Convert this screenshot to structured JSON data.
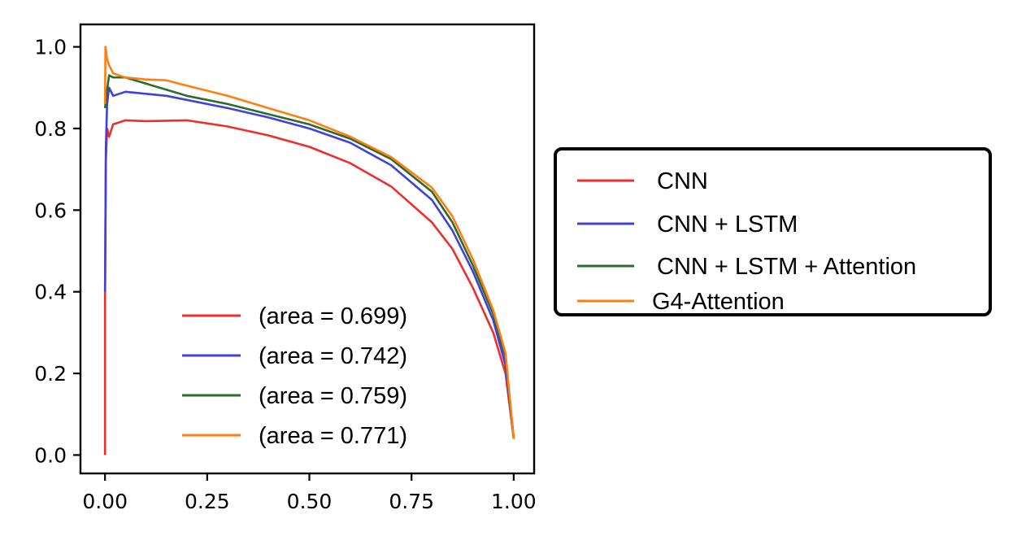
{
  "chart_data": {
    "type": "line",
    "title": "",
    "xlabel": "",
    "ylabel": "",
    "xlim": [
      -0.06,
      1.05
    ],
    "ylim": [
      -0.045,
      1.055
    ],
    "x_ticks": [
      "0.00",
      "0.25",
      "0.50",
      "0.75",
      "1.00"
    ],
    "y_ticks": [
      "0.0",
      "0.2",
      "0.4",
      "0.6",
      "0.8",
      "1.0"
    ],
    "grid": false,
    "legends": [
      {
        "placement": "inside-lower-center",
        "entries": [
          "(area = 0.699)",
          "(area = 0.742)",
          "(area = 0.759)",
          "(area = 0.771)"
        ]
      },
      {
        "placement": "outside-right",
        "entries": [
          "CNN",
          "CNN + LSTM",
          "CNN + LSTM + Attention",
          "G4-Attention"
        ]
      }
    ],
    "series": [
      {
        "name": "CNN",
        "color": "#ee2d2d",
        "area": "0.699",
        "points": [
          [
            0.0,
            0.0
          ],
          [
            0.0,
            0.39
          ],
          [
            0.002,
            0.72
          ],
          [
            0.005,
            0.8
          ],
          [
            0.01,
            0.78
          ],
          [
            0.02,
            0.81
          ],
          [
            0.05,
            0.82
          ],
          [
            0.1,
            0.818
          ],
          [
            0.2,
            0.82
          ],
          [
            0.3,
            0.805
          ],
          [
            0.4,
            0.783
          ],
          [
            0.5,
            0.755
          ],
          [
            0.6,
            0.715
          ],
          [
            0.7,
            0.658
          ],
          [
            0.8,
            0.57
          ],
          [
            0.85,
            0.505
          ],
          [
            0.9,
            0.41
          ],
          [
            0.95,
            0.3
          ],
          [
            0.98,
            0.2
          ],
          [
            1.0,
            0.04
          ]
        ]
      },
      {
        "name": "CNN + LSTM",
        "color": "#4040dd",
        "area": "0.742",
        "points": [
          [
            0.0,
            0.4
          ],
          [
            0.002,
            0.75
          ],
          [
            0.005,
            0.86
          ],
          [
            0.01,
            0.9
          ],
          [
            0.02,
            0.88
          ],
          [
            0.05,
            0.89
          ],
          [
            0.1,
            0.885
          ],
          [
            0.15,
            0.88
          ],
          [
            0.2,
            0.87
          ],
          [
            0.3,
            0.85
          ],
          [
            0.4,
            0.827
          ],
          [
            0.5,
            0.8
          ],
          [
            0.6,
            0.765
          ],
          [
            0.7,
            0.71
          ],
          [
            0.8,
            0.625
          ],
          [
            0.85,
            0.55
          ],
          [
            0.9,
            0.45
          ],
          [
            0.95,
            0.33
          ],
          [
            0.98,
            0.22
          ],
          [
            1.0,
            0.04
          ]
        ]
      },
      {
        "name": "CNN + LSTM + Attention",
        "color": "#2e6b2e",
        "area": "0.759",
        "points": [
          [
            0.0,
            0.85
          ],
          [
            0.003,
            0.88
          ],
          [
            0.01,
            0.93
          ],
          [
            0.02,
            0.925
          ],
          [
            0.05,
            0.925
          ],
          [
            0.1,
            0.91
          ],
          [
            0.2,
            0.88
          ],
          [
            0.3,
            0.86
          ],
          [
            0.4,
            0.835
          ],
          [
            0.5,
            0.81
          ],
          [
            0.6,
            0.775
          ],
          [
            0.7,
            0.725
          ],
          [
            0.8,
            0.645
          ],
          [
            0.85,
            0.57
          ],
          [
            0.9,
            0.465
          ],
          [
            0.95,
            0.345
          ],
          [
            0.98,
            0.24
          ],
          [
            1.0,
            0.04
          ]
        ]
      },
      {
        "name": "G4-Attention",
        "color": "#ff7f0e",
        "area": "0.771",
        "points": [
          [
            0.0,
            0.86
          ],
          [
            0.001,
            1.0
          ],
          [
            0.005,
            0.97
          ],
          [
            0.01,
            0.955
          ],
          [
            0.02,
            0.935
          ],
          [
            0.05,
            0.925
          ],
          [
            0.1,
            0.92
          ],
          [
            0.15,
            0.918
          ],
          [
            0.2,
            0.905
          ],
          [
            0.3,
            0.88
          ],
          [
            0.4,
            0.85
          ],
          [
            0.5,
            0.82
          ],
          [
            0.6,
            0.78
          ],
          [
            0.7,
            0.73
          ],
          [
            0.8,
            0.655
          ],
          [
            0.85,
            0.585
          ],
          [
            0.9,
            0.48
          ],
          [
            0.95,
            0.355
          ],
          [
            0.98,
            0.25
          ],
          [
            1.0,
            0.04
          ]
        ]
      }
    ]
  }
}
